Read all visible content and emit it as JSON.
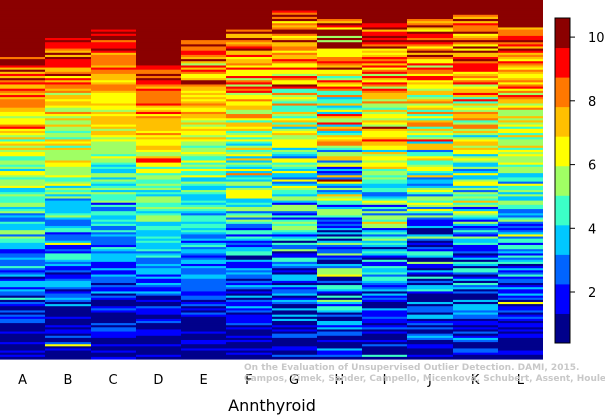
{
  "chart_data": {
    "type": "heatmap",
    "title": "",
    "xlabel": "Annthyroid",
    "ylabel": "",
    "categories": [
      "A",
      "B",
      "C",
      "D",
      "E",
      "F",
      "G",
      "H",
      "I",
      "J",
      "K",
      "L"
    ],
    "color_range": [
      0.4,
      10.6
    ],
    "colorbar_ticks": [
      2,
      4,
      6,
      8,
      10
    ],
    "colorbar_colors": [
      "#00008b",
      "#0000ff",
      "#0064ff",
      "#00c8ff",
      "#3cffc8",
      "#a0ff64",
      "#ffff00",
      "#ffc000",
      "#ff7800",
      "#ff0000",
      "#8b0000"
    ],
    "rows_per_column": 170,
    "description_of_values": "Per-column rank values, sorted from high (top) to low (bottom)",
    "column_profiles": [
      {
        "category": "A",
        "top_dark": 0.14,
        "mid_level": 7.2,
        "noise": 1.6
      },
      {
        "category": "B",
        "top_dark": 0.1,
        "mid_level": 6.8,
        "noise": 1.6
      },
      {
        "category": "C",
        "top_dark": 0.08,
        "mid_level": 5.8,
        "noise": 1.3
      },
      {
        "category": "D",
        "top_dark": 0.18,
        "mid_level": 5.6,
        "noise": 1.1
      },
      {
        "category": "E",
        "top_dark": 0.09,
        "mid_level": 5.9,
        "noise": 1.2
      },
      {
        "category": "F",
        "top_dark": 0.06,
        "mid_level": 5.4,
        "noise": 1.8
      },
      {
        "category": "G",
        "top_dark": 0.02,
        "mid_level": 5.2,
        "noise": 2.2
      },
      {
        "category": "H",
        "top_dark": 0.05,
        "mid_level": 4.6,
        "noise": 3.0
      },
      {
        "category": "I",
        "top_dark": 0.05,
        "mid_level": 5.0,
        "noise": 2.0
      },
      {
        "category": "J",
        "top_dark": 0.05,
        "mid_level": 6.2,
        "noise": 2.4
      },
      {
        "category": "K",
        "top_dark": 0.03,
        "mid_level": 6.0,
        "noise": 2.3
      },
      {
        "category": "L",
        "top_dark": 0.07,
        "mid_level": 5.5,
        "noise": 1.8
      }
    ]
  },
  "credit": {
    "line1": "On the Evaluation of Unsupervised Outlier Detection. DAMI, 2015.",
    "line2": "Campos, Zimek, Sander, Campello, Micenková, Schubert, Assent, Houle"
  }
}
